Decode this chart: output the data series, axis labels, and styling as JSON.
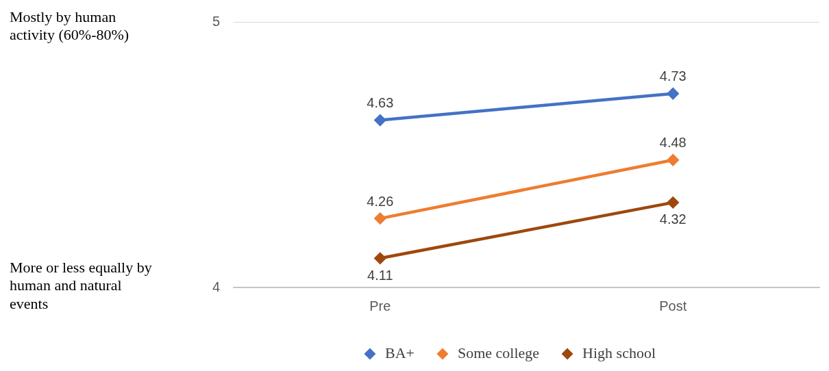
{
  "chart_data": {
    "type": "line",
    "categories": [
      "Pre",
      "Post"
    ],
    "series": [
      {
        "name": "BA+",
        "color": "#4472c4",
        "values": [
          4.63,
          4.73
        ]
      },
      {
        "name": "Some college",
        "color": "#ed7d31",
        "values": [
          4.26,
          4.48
        ]
      },
      {
        "name": "High school",
        "color": "#9e480e",
        "values": [
          4.11,
          4.32
        ]
      }
    ],
    "ylim": [
      4,
      5
    ],
    "yticks": [
      4,
      5
    ],
    "grid": "y",
    "legend": "bottom",
    "marker": "diamond",
    "line_style": "solid",
    "data_labels": true,
    "annotations": [
      "Mostly by human activity (60%-80%)",
      "More or less equally by human and natural events"
    ]
  }
}
